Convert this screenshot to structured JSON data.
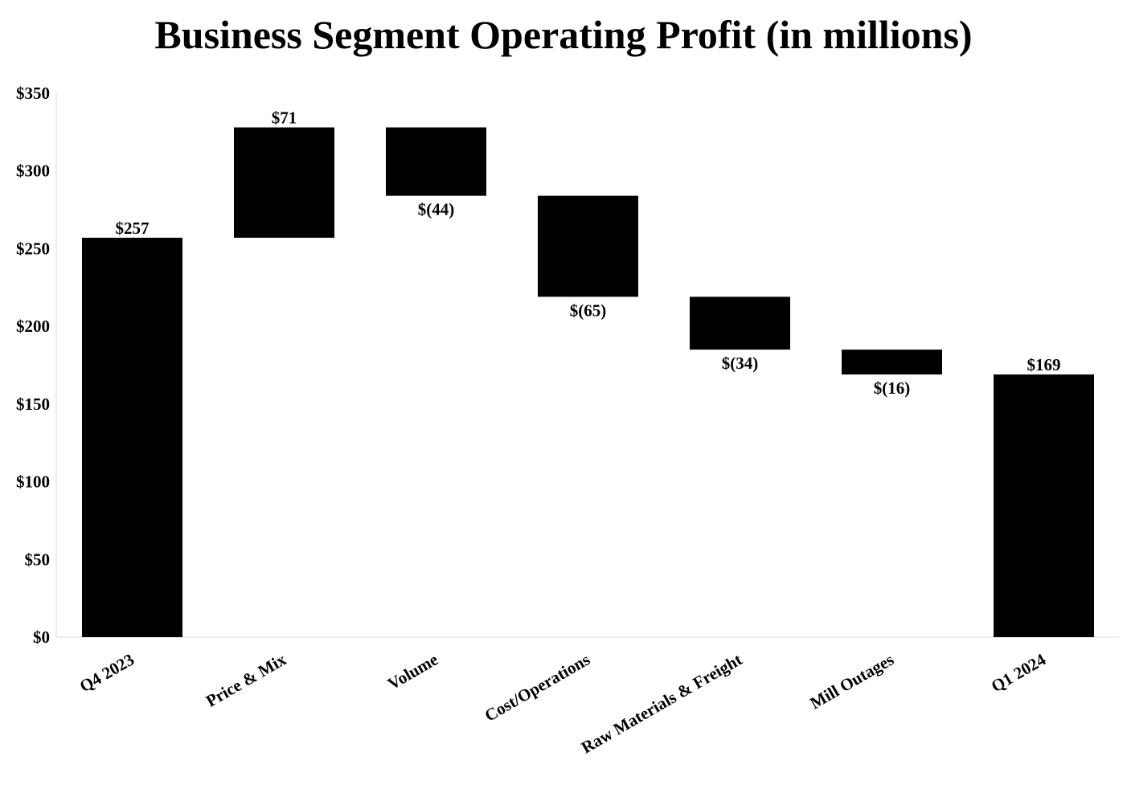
{
  "chart_data": {
    "type": "waterfall",
    "title": "Business Segment Operating Profit (in millions)",
    "xlabel": "",
    "ylabel": "",
    "ylim": [
      0,
      350
    ],
    "yticks": [
      0,
      50,
      100,
      150,
      200,
      250,
      300,
      350
    ],
    "ytick_labels": [
      "$0",
      "$50",
      "$100",
      "$150",
      "$200",
      "$250",
      "$300",
      "$350"
    ],
    "grid": false,
    "legend": "none",
    "bar_color": "#000000",
    "categories": [
      "Q4 2023",
      "Price & Mix",
      "Volume",
      "Cost/Operations",
      "Raw Materials & Freight",
      "Mill Outages",
      "Q1 2024"
    ],
    "values": [
      257,
      71,
      -44,
      -65,
      -34,
      -16,
      169
    ],
    "kinds": [
      "total",
      "delta",
      "delta",
      "delta",
      "delta",
      "delta",
      "total"
    ],
    "data_labels": [
      "$257",
      "$71",
      "$(44)",
      "$(65)",
      "$(34)",
      "$(16)",
      "$169"
    ]
  }
}
